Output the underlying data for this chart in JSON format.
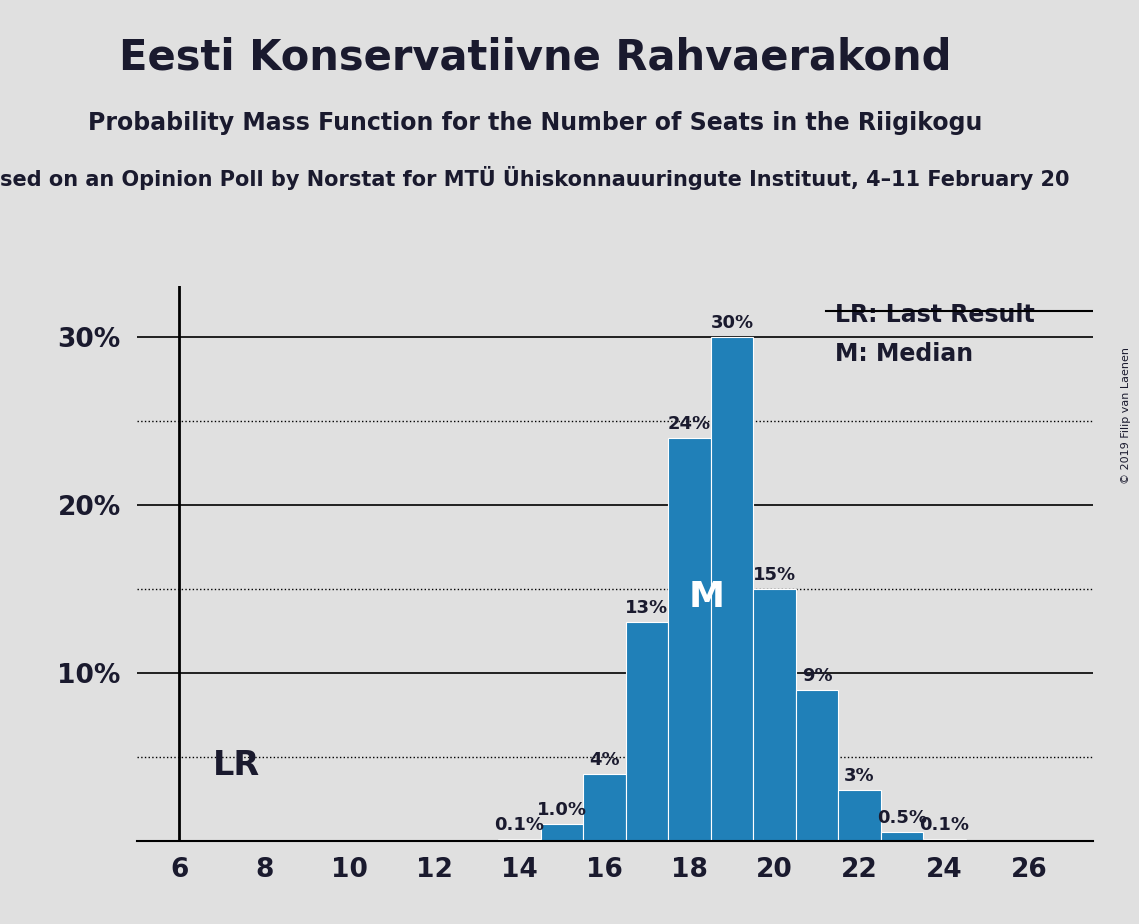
{
  "title": "Eesti Konservatiivne Rahvaerakond",
  "subtitle": "Probability Mass Function for the Number of Seats in the Riigikogu",
  "source_line": "sed on an Opinion Poll by Norstat for MTÜ Ühiskonnauuringute Instituut, 4–11 February 20",
  "copyright": "© 2019 Filip van Laenen",
  "seats": [
    6,
    7,
    8,
    9,
    10,
    11,
    12,
    13,
    14,
    15,
    16,
    17,
    18,
    19,
    20,
    21,
    22,
    23,
    24,
    25,
    26
  ],
  "probabilities": [
    0.0,
    0.0,
    0.0,
    0.0,
    0.0,
    0.0,
    0.0,
    0.0,
    0.1,
    1.0,
    4.0,
    13.0,
    24.0,
    30.0,
    15.0,
    9.0,
    3.0,
    0.5,
    0.1,
    0.0,
    0.0
  ],
  "bar_color": "#2080b8",
  "bar_edgecolor": "white",
  "background_color": "#e0e0e0",
  "LR_seat": 6,
  "median_seat": 19,
  "yticks_solid": [
    10,
    20,
    30
  ],
  "yticks_dotted": [
    5,
    15,
    25
  ],
  "ymax": 33,
  "xlabel_seats": [
    6,
    8,
    10,
    12,
    14,
    16,
    18,
    20,
    22,
    24,
    26
  ],
  "title_fontsize": 30,
  "subtitle_fontsize": 17,
  "source_fontsize": 15,
  "bar_label_fontsize": 13,
  "axis_label_fontsize": 19,
  "lr_label_fontsize": 24,
  "legend_fontsize": 17
}
